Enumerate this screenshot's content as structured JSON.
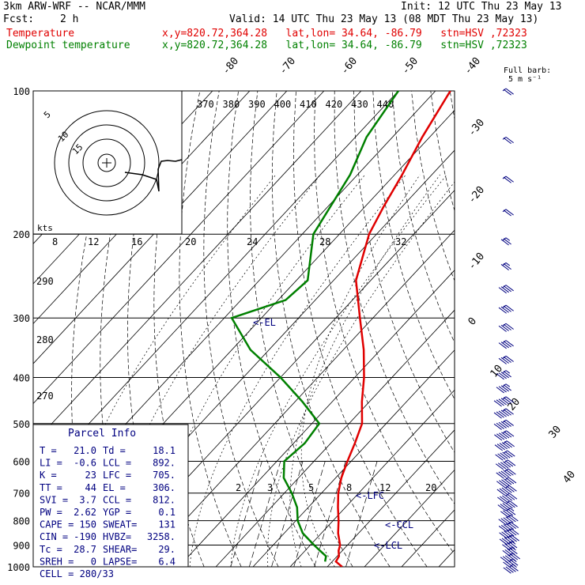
{
  "header": {
    "title": "3km ARW-WRF -- NCAR/MMM",
    "init": "Init: 12 UTC Thu 23 May 13",
    "fcst_label": "Fcst:",
    "fcst_value": "2 h",
    "valid": "Valid: 14 UTC Thu 23 May 13 (08 MDT Thu 23 May 13)",
    "temp_label": "Temperature",
    "dew_label": "Dewpoint temperature",
    "loc_line": "x,y=820.72,364.28   lat,lon= 34.64, -86.79   stn=HSV ,72323"
  },
  "colors": {
    "temperature": "#e00000",
    "dewpoint": "#008000",
    "wind": "#000080",
    "grid": "#000000"
  },
  "barb_legend": {
    "title": "Full barb:",
    "value": "5 m s⁻¹"
  },
  "hodograph": {
    "axis_label": "kts",
    "rings": [
      "5",
      "10",
      "15"
    ],
    "speed_ticks": [
      "8",
      "12",
      "16",
      "20",
      "24",
      "28",
      "32"
    ]
  },
  "theta_labels": [
    "370",
    "380",
    "390",
    "400",
    "410",
    "420",
    "430",
    "440"
  ],
  "mixing_ratio_labels": [
    "2",
    "3",
    "5",
    "8",
    "12",
    "20"
  ],
  "skew_temp_labels": [
    "-80",
    "-70",
    "-60",
    "-50",
    "-40",
    "-30",
    "-20",
    "-10",
    "0",
    "10",
    "20",
    "30",
    "40"
  ],
  "left_theta_labels": [
    "290",
    "280",
    "270"
  ],
  "markers": {
    "el": "<-EL",
    "lfc": "<-LFC",
    "ccl": "<-CCL",
    "lcl": "<-LCL"
  },
  "parcel": {
    "title": "Parcel Info",
    "rows": [
      [
        "T  =",
        "21.0",
        "Td =",
        "18.1"
      ],
      [
        "LI =",
        "-0.6",
        "LCL =",
        "892."
      ],
      [
        "K  =",
        "23",
        "LFC =",
        "705."
      ],
      [
        "TT =",
        "44",
        "EL =",
        "306."
      ],
      [
        "SVI =",
        "3.7",
        "CCL =",
        "812."
      ],
      [
        "PW =",
        "2.62",
        "YGP =",
        "0.1"
      ],
      [
        "CAPE =",
        "150",
        "SWEAT=",
        "131"
      ],
      [
        "CIN =",
        "-190",
        "HVBZ=",
        "3258."
      ],
      [
        "Tc =",
        "28.7",
        "SHEAR=",
        "29."
      ],
      [
        "SREH =",
        "0",
        "LAPSE=",
        "6.4"
      ]
    ],
    "cell": "CELL = 280/33"
  },
  "chart_data": {
    "type": "line",
    "title": "",
    "xlabel": "",
    "ylabel": "",
    "pressure_levels": [
      "100",
      "200",
      "300",
      "400",
      "500",
      "600",
      "700",
      "800",
      "900",
      "1000"
    ],
    "series": [
      {
        "name": "Temperature",
        "points": [
          [
            1000,
            24.0
          ],
          [
            975,
            21.0
          ],
          [
            950,
            20.5
          ],
          [
            925,
            19.0
          ],
          [
            900,
            18.0
          ],
          [
            850,
            14.5
          ],
          [
            800,
            11.5
          ],
          [
            750,
            8.0
          ],
          [
            700,
            4.5
          ],
          [
            650,
            1.5
          ],
          [
            600,
            -1.0
          ],
          [
            550,
            -3.5
          ],
          [
            500,
            -6.5
          ],
          [
            450,
            -12.0
          ],
          [
            400,
            -17.5
          ],
          [
            350,
            -24.5
          ],
          [
            300,
            -33.5
          ],
          [
            250,
            -44.0
          ],
          [
            200,
            -52.0
          ],
          [
            175,
            -55.0
          ],
          [
            150,
            -58.0
          ],
          [
            125,
            -62.0
          ],
          [
            100,
            -66.0
          ]
        ]
      },
      {
        "name": "Dewpoint temperature",
        "points": [
          [
            975,
            18.1
          ],
          [
            950,
            17.0
          ],
          [
            925,
            14.0
          ],
          [
            900,
            11.0
          ],
          [
            850,
            5.0
          ],
          [
            800,
            0.5
          ],
          [
            750,
            -3.0
          ],
          [
            700,
            -8.0
          ],
          [
            650,
            -14.0
          ],
          [
            600,
            -18.0
          ],
          [
            550,
            -17.0
          ],
          [
            500,
            -18.0
          ],
          [
            450,
            -28.0
          ],
          [
            400,
            -40.0
          ],
          [
            350,
            -55.0
          ],
          [
            300,
            -68.0
          ],
          [
            275,
            -58.0
          ],
          [
            250,
            -57.0
          ],
          [
            200,
            -67.0
          ],
          [
            150,
            -72.0
          ],
          [
            125,
            -77.0
          ],
          [
            100,
            -80.0
          ]
        ]
      }
    ],
    "wind_barbs_kts": [
      10,
      8,
      10,
      12,
      15,
      15,
      18,
      20,
      20,
      22,
      22,
      25,
      25,
      28,
      28,
      30,
      30,
      32,
      30,
      30,
      30,
      28,
      28,
      30,
      28,
      25,
      28,
      30,
      30,
      28,
      25,
      25,
      28,
      25,
      25
    ],
    "hodograph_path": [
      [
        7,
        -1
      ],
      [
        8,
        3
      ],
      [
        9,
        6
      ],
      [
        10,
        6
      ],
      [
        12,
        7
      ],
      [
        14,
        8
      ],
      [
        16,
        8
      ]
    ]
  }
}
